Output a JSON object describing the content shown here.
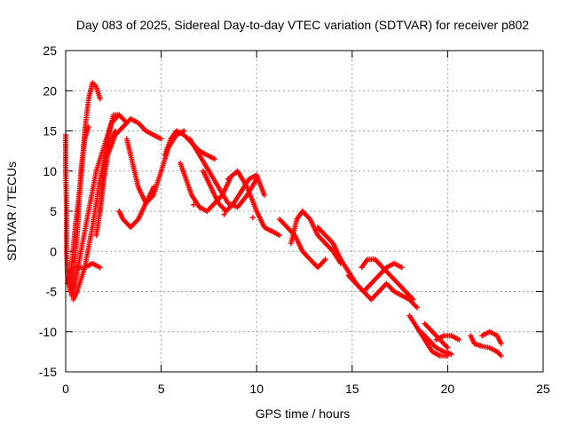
{
  "chart_data": {
    "type": "scatter",
    "title": "Day 083 of 2025, Sidereal Day-to-day VTEC variation (SDTVAR) for receiver p802",
    "xlabel": "GPS time / hours",
    "ylabel": "SDTVAR / TECUs",
    "xlim": [
      0,
      25
    ],
    "ylim": [
      -15,
      25
    ],
    "xticks": [
      "0",
      "5",
      "10",
      "15",
      "20",
      "25"
    ],
    "yticks": [
      "-15",
      "-10",
      "-5",
      "0",
      "5",
      "10",
      "15",
      "20",
      "25"
    ],
    "grid": true,
    "marker": "+",
    "series": [
      {
        "name": "SDTVAR",
        "color": "#ff0000",
        "tracks": [
          [
            [
              0.0,
              14.5
            ],
            [
              0.0,
              10
            ],
            [
              0.05,
              5
            ],
            [
              0.05,
              0
            ],
            [
              0.1,
              -3
            ],
            [
              0.2,
              -4.5
            ]
          ],
          [
            [
              0.1,
              -4
            ],
            [
              0.3,
              -2
            ],
            [
              0.5,
              3
            ],
            [
              0.8,
              9
            ],
            [
              1.0,
              15
            ],
            [
              1.2,
              19
            ],
            [
              1.4,
              21
            ],
            [
              1.6,
              20.5
            ],
            [
              1.8,
              19
            ]
          ],
          [
            [
              0.2,
              -5
            ],
            [
              0.4,
              -3
            ],
            [
              0.6,
              2
            ],
            [
              0.8,
              10
            ],
            [
              1.0,
              14
            ],
            [
              1.2,
              15.5
            ]
          ],
          [
            [
              0.3,
              -5.5
            ],
            [
              0.5,
              -4
            ],
            [
              0.8,
              0
            ],
            [
              1.2,
              5
            ],
            [
              1.6,
              10
            ],
            [
              2.0,
              13
            ],
            [
              2.4,
              16
            ],
            [
              2.8,
              17
            ],
            [
              3.2,
              16
            ]
          ],
          [
            [
              0.4,
              -6
            ],
            [
              0.6,
              -5
            ],
            [
              1.0,
              -2
            ],
            [
              1.4,
              3
            ],
            [
              1.8,
              9
            ],
            [
              2.2,
              13
            ],
            [
              2.6,
              15
            ]
          ],
          [
            [
              0.6,
              -2
            ],
            [
              1.0,
              -2
            ],
            [
              1.4,
              -1.5
            ],
            [
              1.8,
              -2
            ]
          ],
          [
            [
              1.8,
              5
            ],
            [
              2.0,
              10
            ],
            [
              2.2,
              14
            ],
            [
              2.5,
              17
            ],
            [
              2.7,
              17
            ]
          ],
          [
            [
              1.6,
              2
            ],
            [
              1.8,
              5
            ],
            [
              2.0,
              9
            ],
            [
              2.2,
              12
            ],
            [
              2.6,
              14.5
            ],
            [
              3.0,
              15.5
            ],
            [
              3.4,
              16.5
            ],
            [
              3.8,
              16
            ],
            [
              4.2,
              15
            ],
            [
              4.6,
              14.5
            ],
            [
              5.0,
              14
            ]
          ],
          [
            [
              2.8,
              5
            ],
            [
              3.0,
              4
            ],
            [
              3.4,
              3
            ],
            [
              3.8,
              4
            ],
            [
              4.2,
              6
            ],
            [
              4.6,
              8
            ]
          ],
          [
            [
              3.2,
              14
            ],
            [
              3.5,
              11
            ],
            [
              3.8,
              8
            ],
            [
              4.2,
              6
            ],
            [
              4.6,
              7
            ],
            [
              5.0,
              10
            ],
            [
              5.4,
              13
            ],
            [
              5.8,
              14.5
            ],
            [
              6.2,
              15
            ]
          ],
          [
            [
              5.2,
              12
            ],
            [
              5.5,
              14
            ],
            [
              5.8,
              15
            ],
            [
              6.2,
              14.5
            ],
            [
              6.6,
              13.5
            ],
            [
              7.0,
              12.5
            ],
            [
              7.4,
              12
            ],
            [
              7.8,
              11.5
            ]
          ],
          [
            [
              6.0,
              11
            ],
            [
              6.3,
              9
            ],
            [
              6.6,
              7
            ],
            [
              7.0,
              5.5
            ],
            [
              7.4,
              5
            ],
            [
              7.8,
              6
            ],
            [
              8.2,
              7
            ],
            [
              8.6,
              9
            ]
          ],
          [
            [
              6.5,
              14
            ],
            [
              7.0,
              12
            ],
            [
              7.5,
              10
            ],
            [
              8.0,
              8
            ],
            [
              8.5,
              6
            ],
            [
              9.0,
              5.5
            ],
            [
              9.5,
              7
            ],
            [
              10.0,
              9
            ]
          ],
          [
            [
              7.2,
              10
            ],
            [
              7.6,
              8
            ],
            [
              8.0,
              6
            ],
            [
              8.4,
              5
            ],
            [
              8.8,
              6
            ],
            [
              9.2,
              7.5
            ],
            [
              9.6,
              9
            ],
            [
              10.0,
              9.5
            ],
            [
              10.4,
              7
            ]
          ],
          [
            [
              8.5,
              9
            ],
            [
              9.0,
              10
            ],
            [
              9.5,
              8
            ],
            [
              10.0,
              5
            ],
            [
              10.4,
              3
            ],
            [
              10.8,
              2.5
            ],
            [
              11.2,
              2
            ]
          ],
          [
            [
              11.2,
              4
            ],
            [
              11.6,
              3
            ],
            [
              12.0,
              2
            ],
            [
              12.4,
              0
            ],
            [
              12.8,
              -1
            ],
            [
              13.2,
              -2
            ],
            [
              13.6,
              -1
            ]
          ],
          [
            [
              11.8,
              1
            ],
            [
              12.1,
              4
            ],
            [
              12.4,
              5
            ],
            [
              12.8,
              4
            ],
            [
              13.2,
              2
            ],
            [
              13.6,
              1
            ],
            [
              14.0,
              0
            ],
            [
              14.4,
              -1.5
            ]
          ],
          [
            [
              13.2,
              3
            ],
            [
              13.6,
              2
            ],
            [
              14.0,
              1
            ],
            [
              14.4,
              -1
            ],
            [
              14.8,
              -2.5
            ],
            [
              15.2,
              -4
            ]
          ],
          [
            [
              14.8,
              -3
            ],
            [
              15.2,
              -4
            ],
            [
              15.6,
              -5
            ],
            [
              16.0,
              -4
            ],
            [
              16.4,
              -3
            ],
            [
              16.8,
              -2
            ],
            [
              17.2,
              -1.5
            ],
            [
              17.6,
              -2
            ]
          ],
          [
            [
              15.5,
              -2
            ],
            [
              15.8,
              -1
            ],
            [
              16.2,
              -1
            ],
            [
              16.6,
              -2
            ],
            [
              17.0,
              -3
            ],
            [
              17.4,
              -4
            ],
            [
              17.8,
              -5
            ],
            [
              18.2,
              -6
            ]
          ],
          [
            [
              15.2,
              -4
            ],
            [
              15.6,
              -5
            ],
            [
              16.0,
              -6
            ],
            [
              16.4,
              -5
            ],
            [
              16.8,
              -4
            ],
            [
              17.2,
              -5
            ],
            [
              17.6,
              -5.5
            ],
            [
              18.0,
              -6
            ],
            [
              18.4,
              -7
            ]
          ],
          [
            [
              18.0,
              -8
            ],
            [
              18.4,
              -9.5
            ],
            [
              18.8,
              -11
            ],
            [
              19.2,
              -12.5
            ],
            [
              19.6,
              -13
            ],
            [
              20.0,
              -13
            ]
          ],
          [
            [
              18.6,
              -10
            ],
            [
              19.0,
              -11
            ],
            [
              19.4,
              -12
            ],
            [
              19.8,
              -12.5
            ],
            [
              20.2,
              -12.8
            ]
          ],
          [
            [
              18.8,
              -9
            ],
            [
              19.2,
              -10
            ],
            [
              19.6,
              -11
            ],
            [
              19.8,
              -11.5
            ],
            [
              20.0,
              -12
            ]
          ],
          [
            [
              19.4,
              -11
            ],
            [
              19.8,
              -10.5
            ],
            [
              20.2,
              -10.5
            ],
            [
              20.6,
              -11
            ]
          ],
          [
            [
              21.2,
              -10.5
            ],
            [
              21.4,
              -11.5
            ],
            [
              21.8,
              -11.8
            ],
            [
              22.2,
              -12
            ],
            [
              22.6,
              -12.5
            ],
            [
              22.8,
              -13
            ]
          ],
          [
            [
              21.8,
              -10.5
            ],
            [
              22.2,
              -10
            ],
            [
              22.6,
              -10.5
            ],
            [
              22.8,
              -11.5
            ]
          ]
        ]
      }
    ],
    "isolated_points": [
      [
        6.7,
        5.8
      ],
      [
        9.8,
        4.2
      ],
      [
        8.3,
        4.6
      ]
    ]
  }
}
